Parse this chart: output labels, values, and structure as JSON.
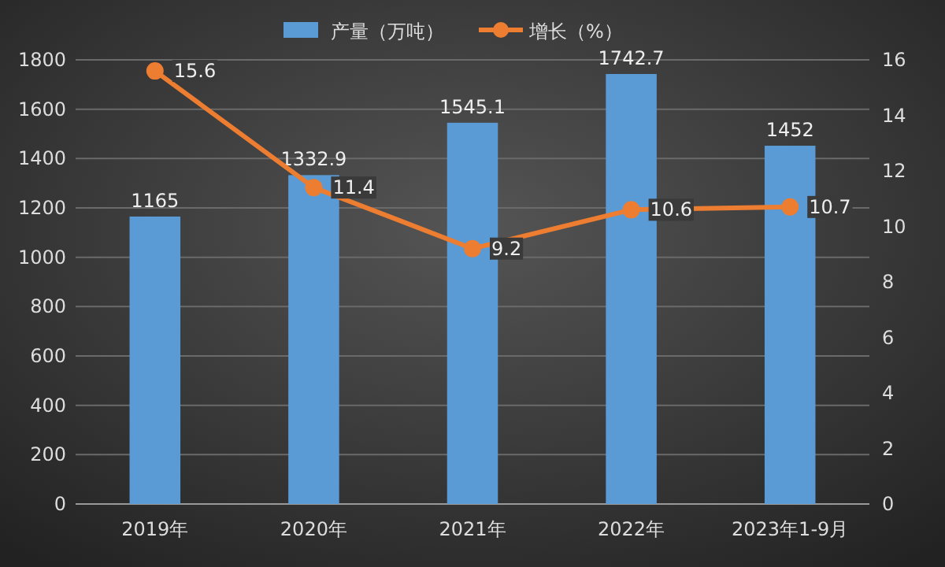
{
  "chart_data": {
    "type": "bar",
    "categories": [
      "2019年",
      "2020年",
      "2021年",
      "2022年",
      "2023年1-9月"
    ],
    "series": [
      {
        "name": "产量（万吨）",
        "color": "#5b9bd5",
        "values": [
          1165,
          1332.9,
          1545.1,
          1742.7,
          1452
        ]
      },
      {
        "name": "增长（%）",
        "type": "line",
        "axis": "y2",
        "color": "#ed7d31",
        "values": [
          15.6,
          11.4,
          9.2,
          10.6,
          10.7
        ]
      }
    ],
    "ylim": [
      0,
      1800
    ],
    "yticks": [
      0,
      200,
      400,
      600,
      800,
      1000,
      1200,
      1400,
      1600,
      1800
    ],
    "y2lim": [
      0,
      16
    ],
    "y2ticks": [
      0,
      2,
      4,
      6,
      8,
      10,
      12,
      14,
      16
    ],
    "grid": "y",
    "legend": "top",
    "marker": "circle",
    "data_labels": true
  }
}
